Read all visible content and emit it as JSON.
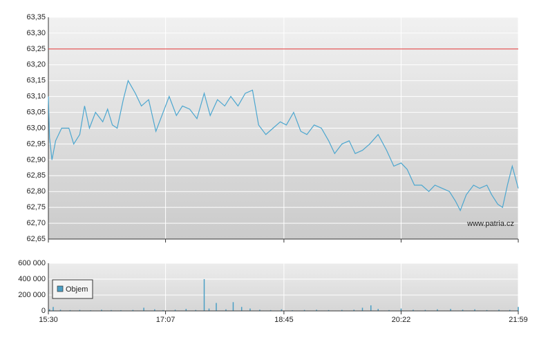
{
  "chart_data": [
    {
      "type": "line",
      "xlim": [
        0,
        389
      ],
      "ylim": [
        62.65,
        63.35
      ],
      "yticks": [
        {
          "value": 62.65,
          "label": "62,65"
        },
        {
          "value": 62.7,
          "label": "62,70"
        },
        {
          "value": 62.75,
          "label": "62,75"
        },
        {
          "value": 62.8,
          "label": "62,80"
        },
        {
          "value": 62.85,
          "label": "62,85"
        },
        {
          "value": 62.9,
          "label": "62,90"
        },
        {
          "value": 62.95,
          "label": "62,95"
        },
        {
          "value": 63.0,
          "label": "63,00"
        },
        {
          "value": 63.05,
          "label": "63,05"
        },
        {
          "value": 63.1,
          "label": "63,10"
        },
        {
          "value": 63.15,
          "label": "63,15"
        },
        {
          "value": 63.2,
          "label": "63,20"
        },
        {
          "value": 63.25,
          "label": "63,25"
        },
        {
          "value": 63.3,
          "label": "63,30"
        },
        {
          "value": 63.35,
          "label": "63,35"
        }
      ],
      "grid": true,
      "hline": {
        "value": 63.25,
        "color": "#e03030"
      },
      "annotation": "www.patria.cz",
      "x": [
        0,
        1,
        3,
        6,
        11,
        17,
        21,
        26,
        30,
        34,
        39,
        45,
        49,
        53,
        57,
        62,
        66,
        72,
        77,
        83,
        89,
        94,
        100,
        106,
        111,
        117,
        123,
        129,
        134,
        140,
        146,
        151,
        157,
        163,
        169,
        174,
        180,
        186,
        192,
        197,
        203,
        209,
        214,
        220,
        226,
        232,
        237,
        243,
        249,
        254,
        260,
        266,
        273,
        280,
        286,
        292,
        297,
        303,
        309,
        315,
        320,
        326,
        332,
        337,
        341,
        346,
        352,
        357,
        363,
        367,
        372,
        376,
        380,
        384,
        389
      ],
      "series": [
        {
          "color": "#4ba6cf",
          "values": [
            63.1,
            62.97,
            62.9,
            62.96,
            63.0,
            63.0,
            62.95,
            62.98,
            63.07,
            63.0,
            63.05,
            63.02,
            63.06,
            63.01,
            63.0,
            63.09,
            63.15,
            63.11,
            63.07,
            63.09,
            62.99,
            63.04,
            63.1,
            63.04,
            63.07,
            63.06,
            63.03,
            63.11,
            63.04,
            63.09,
            63.07,
            63.1,
            63.07,
            63.11,
            63.12,
            63.01,
            62.98,
            63.0,
            63.02,
            63.01,
            63.05,
            62.99,
            62.98,
            63.01,
            63.0,
            62.96,
            62.92,
            62.95,
            62.96,
            62.92,
            62.93,
            62.95,
            62.98,
            62.93,
            62.88,
            62.89,
            62.87,
            62.82,
            62.82,
            62.8,
            62.82,
            62.81,
            62.8,
            62.77,
            62.74,
            62.79,
            62.82,
            62.81,
            62.82,
            62.79,
            62.76,
            62.75,
            62.82,
            62.88,
            62.81
          ]
        }
      ]
    },
    {
      "type": "bar",
      "xlim": [
        0,
        389
      ],
      "xticks": [
        {
          "value": 0,
          "label": "15:30"
        },
        {
          "value": 97,
          "label": "17:07"
        },
        {
          "value": 195,
          "label": "18:45"
        },
        {
          "value": 292,
          "label": "20:22"
        },
        {
          "value": 389,
          "label": "21:59"
        }
      ],
      "ylim": [
        0,
        600000
      ],
      "yticks": [
        {
          "value": 0,
          "label": "0"
        },
        {
          "value": 200000,
          "label": "200 000"
        },
        {
          "value": 400000,
          "label": "400 000"
        },
        {
          "value": 600000,
          "label": "600 000"
        }
      ],
      "grid": true,
      "series": [
        {
          "name": "Objem",
          "color": "#4a9ec4",
          "x": [
            1,
            4,
            10,
            18,
            26,
            35,
            44,
            52,
            60,
            70,
            79,
            88,
            95,
            105,
            114,
            122,
            129,
            133,
            139,
            147,
            153,
            160,
            167,
            175,
            184,
            193,
            202,
            212,
            222,
            232,
            243,
            253,
            260,
            267,
            273,
            282,
            292,
            302,
            312,
            322,
            333,
            343,
            353,
            363,
            373,
            382,
            389
          ],
          "values": [
            20000,
            50000,
            15000,
            10000,
            12000,
            8000,
            15000,
            10000,
            9000,
            12000,
            40000,
            20000,
            10000,
            15000,
            25000,
            12000,
            400000,
            30000,
            100000,
            20000,
            110000,
            50000,
            30000,
            15000,
            10000,
            20000,
            8000,
            12000,
            15000,
            10000,
            12000,
            15000,
            40000,
            70000,
            25000,
            10000,
            30000,
            15000,
            12000,
            20000,
            25000,
            15000,
            20000,
            10000,
            15000,
            12000,
            50000
          ]
        }
      ]
    }
  ]
}
